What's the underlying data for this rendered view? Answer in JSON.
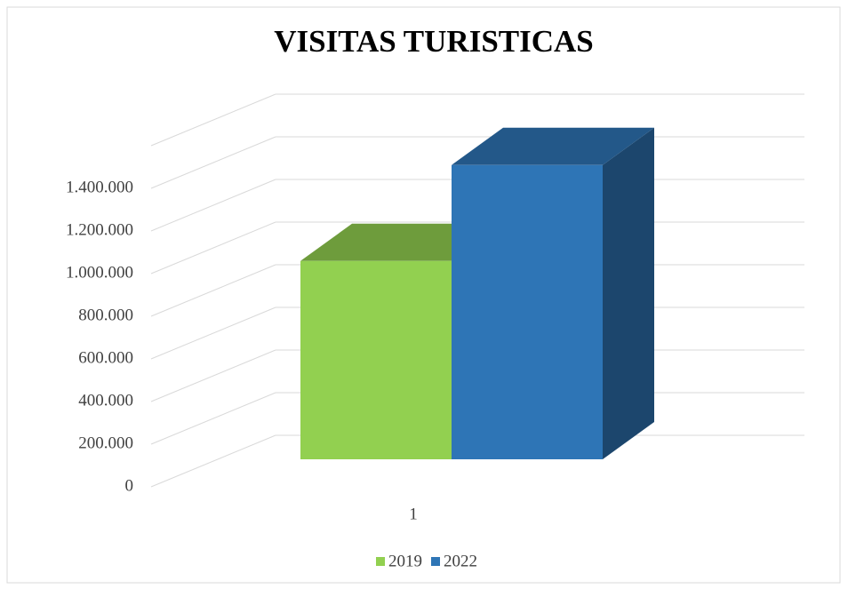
{
  "chart_data": {
    "type": "bar3d",
    "title": "VISITAS TURISTICAS",
    "categories": [
      "1"
    ],
    "series": [
      {
        "name": "2019",
        "color": "#92d050",
        "values": [
          930000
        ]
      },
      {
        "name": "2022",
        "color": "#2e75b6",
        "values": [
          1380000
        ]
      }
    ],
    "ylim": [
      0,
      1600000
    ],
    "yticks": [
      0,
      {
        "value": 200000,
        "label": "200.000"
      },
      {
        "value": 400000,
        "label": "400.000"
      },
      {
        "value": 600000,
        "label": "600.000"
      },
      {
        "value": 800000,
        "label": "800.000"
      },
      {
        "value": 1000000,
        "label": "1.000.000"
      },
      {
        "value": 1200000,
        "label": "1.200.000"
      },
      {
        "value": 1400000,
        "label": "1.400.000"
      }
    ],
    "grid": true,
    "legend": "bottom"
  }
}
